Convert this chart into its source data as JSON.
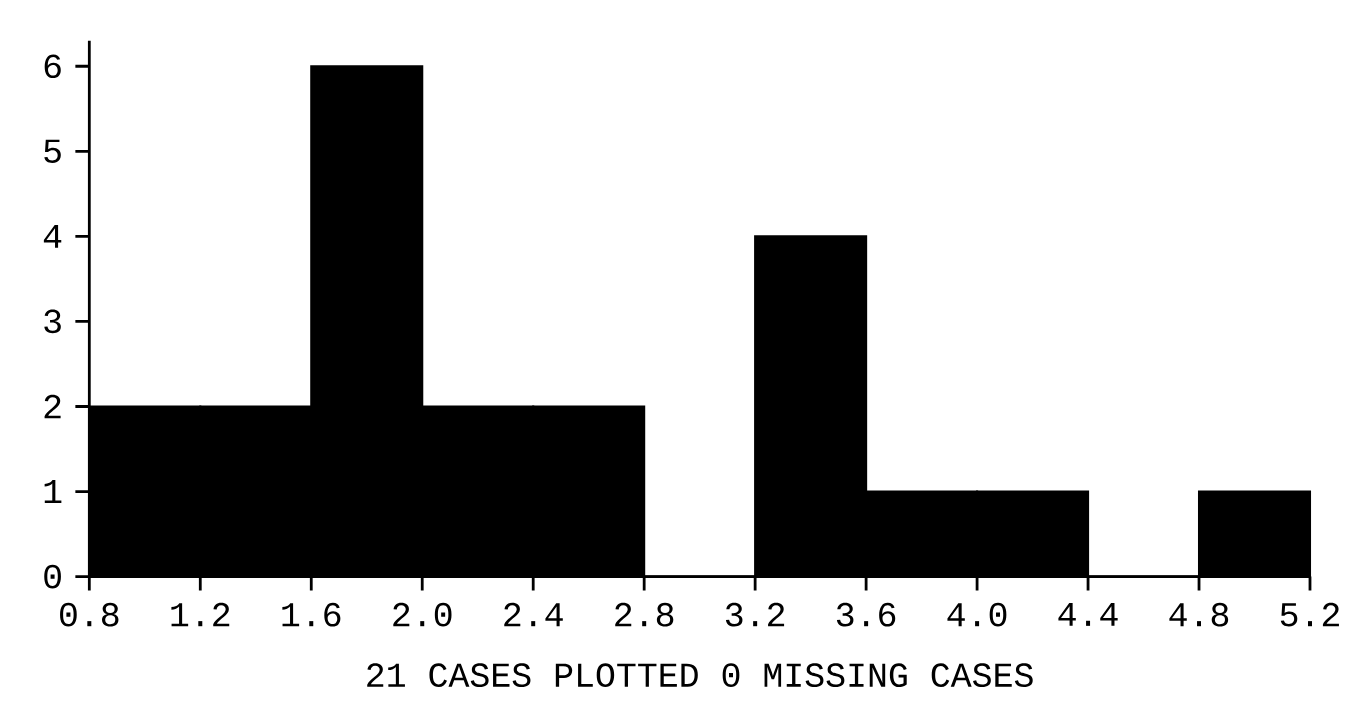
{
  "chart_data": {
    "type": "histogram",
    "bins": [
      0.8,
      1.2,
      1.6,
      2.0,
      2.4,
      2.8,
      3.2,
      3.6,
      4.0,
      4.4,
      4.8,
      5.2
    ],
    "values": [
      2,
      2,
      6,
      2,
      2,
      0,
      4,
      1,
      1,
      0,
      1
    ],
    "color": "#000000",
    "xlim": [
      0.8,
      5.2
    ],
    "ylim": [
      0,
      6.3
    ],
    "xticks": [
      0.8,
      1.2,
      1.6,
      {
        "value": 2.0,
        "label": "2.0"
      },
      2.4,
      2.8,
      3.2,
      3.6,
      {
        "value": 4.0,
        "label": "4.0"
      },
      4.4,
      4.8,
      5.2
    ],
    "yticks": [
      0,
      1,
      2,
      3,
      4,
      5,
      6
    ],
    "annotations": [
      "21 CASES PLOTTED    0 MISSING CASES"
    ]
  }
}
